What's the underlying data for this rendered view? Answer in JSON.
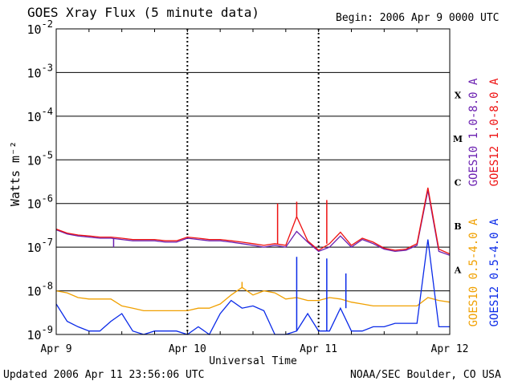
{
  "header": {
    "title": "GOES Xray Flux (5 minute data)",
    "begin": "Begin:  2006 Apr 9 0000 UTC"
  },
  "footer": {
    "updated": "Updated 2006 Apr 11 23:56:06 UTC",
    "credit": "NOAA/SEC Boulder, CO USA"
  },
  "chart_data": {
    "type": "line",
    "title": "GOES Xray Flux (5 minute data)",
    "xlabel": "Universal Time",
    "ylabel": "Watts m⁻²",
    "yscale": "log",
    "ylim": [
      1e-09,
      0.01
    ],
    "xlim": [
      0,
      72
    ],
    "x_unit": "hours since 2006 Apr 9 0000 UTC",
    "x_ticks": [
      {
        "x": 0,
        "label": "Apr 9"
      },
      {
        "x": 24,
        "label": "Apr 10"
      },
      {
        "x": 48,
        "label": "Apr 11"
      },
      {
        "x": 72,
        "label": "Apr 12"
      }
    ],
    "y_ticks": [
      {
        "exp": -2,
        "label": "10",
        "sup": "-2"
      },
      {
        "exp": -3,
        "label": "10",
        "sup": "-3"
      },
      {
        "exp": -4,
        "label": "10",
        "sup": "-4"
      },
      {
        "exp": -5,
        "label": "10",
        "sup": "-5"
      },
      {
        "exp": -6,
        "label": "10",
        "sup": "-6"
      },
      {
        "exp": -7,
        "label": "10",
        "sup": "-7"
      },
      {
        "exp": -8,
        "label": "10",
        "sup": "-8"
      },
      {
        "exp": -9,
        "label": "10",
        "sup": "-9"
      }
    ],
    "flare_classes": [
      {
        "label": "X",
        "exp": -3.5
      },
      {
        "label": "M",
        "exp": -4.5
      },
      {
        "label": "C",
        "exp": -5.5
      },
      {
        "label": "B",
        "exp": -6.5
      },
      {
        "label": "A",
        "exp": -7.5
      }
    ],
    "grid": true,
    "legend_position": "right",
    "colors": {
      "goes10_long": "#6a1fb0",
      "goes12_long": "#ee1111",
      "goes10_short": "#f0a000",
      "goes12_short": "#0a2ae8"
    },
    "series": [
      {
        "name": "GOES10 1.0-8.0 A",
        "color": "#6a1fb0",
        "x": [
          0,
          2,
          4,
          6,
          8,
          10,
          12,
          14,
          16,
          18,
          20,
          22,
          24,
          26,
          28,
          30,
          32,
          34,
          36,
          38,
          40,
          42,
          44,
          46,
          48,
          50,
          52,
          54,
          56,
          58,
          60,
          62,
          64,
          66,
          68,
          70,
          72
        ],
        "y": [
          2.5e-07,
          2e-07,
          1.8e-07,
          1.7e-07,
          1.6e-07,
          1.6e-07,
          1.5e-07,
          1.4e-07,
          1.4e-07,
          1.4e-07,
          1.3e-07,
          1.3e-07,
          1.6e-07,
          1.5e-07,
          1.4e-07,
          1.4e-07,
          1.3e-07,
          1.2e-07,
          1.1e-07,
          1e-07,
          1.1e-07,
          1e-07,
          2.3e-07,
          1.3e-07,
          8e-08,
          1e-07,
          1.8e-07,
          1e-07,
          1.5e-07,
          1.2e-07,
          9e-08,
          8e-08,
          8.5e-08,
          1.1e-07,
          2e-06,
          8e-08,
          6.5e-08
        ]
      },
      {
        "name": "GOES12 1.0-8.0 A",
        "color": "#ee1111",
        "x": [
          0,
          2,
          4,
          6,
          8,
          10,
          12,
          14,
          16,
          18,
          20,
          22,
          24,
          26,
          28,
          30,
          32,
          34,
          36,
          38,
          40,
          42,
          44,
          46,
          48,
          50,
          52,
          54,
          56,
          58,
          60,
          62,
          64,
          66,
          68,
          70,
          72
        ],
        "y": [
          2.6e-07,
          2.1e-07,
          1.9e-07,
          1.8e-07,
          1.7e-07,
          1.7e-07,
          1.6e-07,
          1.5e-07,
          1.5e-07,
          1.5e-07,
          1.4e-07,
          1.4e-07,
          1.7e-07,
          1.6e-07,
          1.5e-07,
          1.5e-07,
          1.4e-07,
          1.3e-07,
          1.2e-07,
          1.1e-07,
          1.2e-07,
          1.1e-07,
          5e-07,
          1.4e-07,
          8.5e-08,
          1.2e-07,
          2.2e-07,
          1.1e-07,
          1.6e-07,
          1.3e-07,
          9.5e-08,
          8.5e-08,
          9e-08,
          1.2e-07,
          2.3e-06,
          9e-08,
          7e-08
        ]
      },
      {
        "name": "GOES10 0.5-4.0 A",
        "color": "#f0a000",
        "x": [
          0,
          2,
          4,
          6,
          8,
          10,
          12,
          14,
          16,
          18,
          20,
          22,
          24,
          26,
          28,
          30,
          32,
          34,
          36,
          38,
          40,
          42,
          44,
          46,
          48,
          50,
          52,
          54,
          56,
          58,
          60,
          62,
          64,
          66,
          68,
          70,
          72
        ],
        "y": [
          1e-08,
          9e-09,
          7e-09,
          6.5e-09,
          6.5e-09,
          6.5e-09,
          4.5e-09,
          4e-09,
          3.5e-09,
          3.5e-09,
          3.5e-09,
          3.5e-09,
          3.5e-09,
          4e-09,
          4e-09,
          5e-09,
          8e-09,
          1.2e-08,
          8e-09,
          1e-08,
          9e-09,
          6.5e-09,
          7e-09,
          6e-09,
          6e-09,
          7e-09,
          6.5e-09,
          5.5e-09,
          5e-09,
          4.5e-09,
          4.5e-09,
          4.5e-09,
          4.5e-09,
          4.5e-09,
          7e-09,
          6e-09,
          5.5e-09
        ]
      },
      {
        "name": "GOES12 0.5-4.0 A",
        "color": "#0a2ae8",
        "x": [
          0,
          2,
          4,
          6,
          8,
          10,
          12,
          14,
          16,
          18,
          20,
          22,
          24,
          26,
          28,
          30,
          32,
          34,
          36,
          38,
          40,
          42,
          44,
          46,
          48,
          50,
          52,
          54,
          56,
          58,
          60,
          62,
          64,
          66,
          68,
          70,
          72
        ],
        "y": [
          5e-09,
          2e-09,
          1.5e-09,
          1.2e-09,
          1.2e-09,
          2e-09,
          3e-09,
          1.2e-09,
          1e-09,
          1.2e-09,
          1.2e-09,
          1.2e-09,
          1e-09,
          1.5e-09,
          1e-09,
          3e-09,
          6e-09,
          4e-09,
          4.5e-09,
          3.5e-09,
          1e-09,
          1e-09,
          1.2e-09,
          3e-09,
          1.2e-09,
          1.2e-09,
          4e-09,
          1.2e-09,
          1.2e-09,
          1.5e-09,
          1.5e-09,
          1.8e-09,
          1.8e-09,
          1.8e-09,
          1.5e-07,
          1.5e-09,
          1.5e-09
        ]
      }
    ],
    "spikes": [
      {
        "series": 0,
        "x": 10.5,
        "y": 1e-07
      },
      {
        "series": 1,
        "x": 40.5,
        "y": 1e-06
      },
      {
        "series": 1,
        "x": 44.0,
        "y": 1.1e-06
      },
      {
        "series": 1,
        "x": 49.5,
        "y": 1.2e-06
      },
      {
        "series": 3,
        "x": 44.0,
        "y": 6e-08
      },
      {
        "series": 3,
        "x": 49.5,
        "y": 5.5e-08
      },
      {
        "series": 3,
        "x": 53.0,
        "y": 2.5e-08
      },
      {
        "series": 2,
        "x": 34.0,
        "y": 1.6e-08
      }
    ]
  }
}
